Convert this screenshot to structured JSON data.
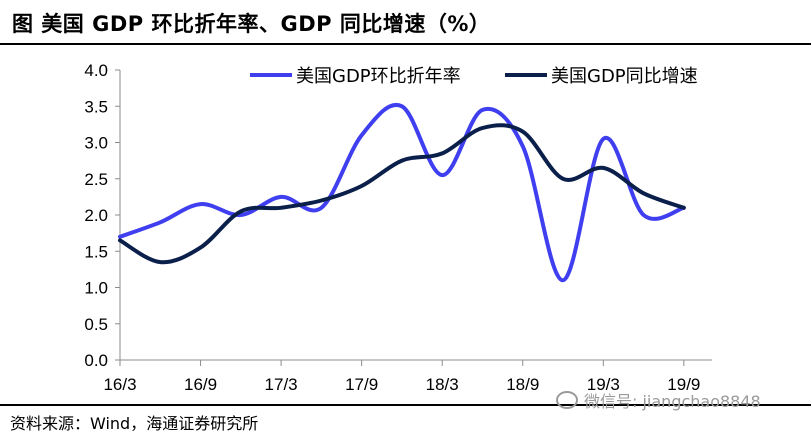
{
  "figure": {
    "title": "图    美国 GDP 环比折年率、GDP 同比增速（%）",
    "source": "资料来源：Wind，海通证券研究所",
    "watermark": "微信号: jiangchao8848"
  },
  "chart_data": {
    "type": "line",
    "x_ticks": [
      "16/3",
      "16/9",
      "17/3",
      "17/9",
      "18/3",
      "18/9",
      "19/3",
      "19/9"
    ],
    "x": [
      "16/3",
      "16/6",
      "16/9",
      "16/12",
      "17/3",
      "17/6",
      "17/9",
      "17/12",
      "18/3",
      "18/6",
      "18/9",
      "18/12",
      "19/3",
      "19/6",
      "19/9"
    ],
    "ylim": [
      0.0,
      4.0
    ],
    "yticks": [
      "0.0",
      "0.5",
      "1.0",
      "1.5",
      "2.0",
      "2.5",
      "3.0",
      "3.5",
      "4.0"
    ],
    "legend_position": "top-right",
    "series": [
      {
        "name": "美国GDP环比折年率",
        "color": "#3f3ff0",
        "values": [
          1.7,
          1.9,
          2.15,
          2.0,
          2.25,
          2.1,
          3.1,
          3.5,
          2.55,
          3.45,
          2.95,
          1.1,
          3.05,
          2.0,
          2.1
        ]
      },
      {
        "name": "美国GDP同比增速",
        "color": "#0a1f4a",
        "values": [
          1.65,
          1.35,
          1.55,
          2.05,
          2.1,
          2.2,
          2.4,
          2.75,
          2.85,
          3.2,
          3.15,
          2.5,
          2.65,
          2.3,
          2.1
        ]
      }
    ]
  }
}
